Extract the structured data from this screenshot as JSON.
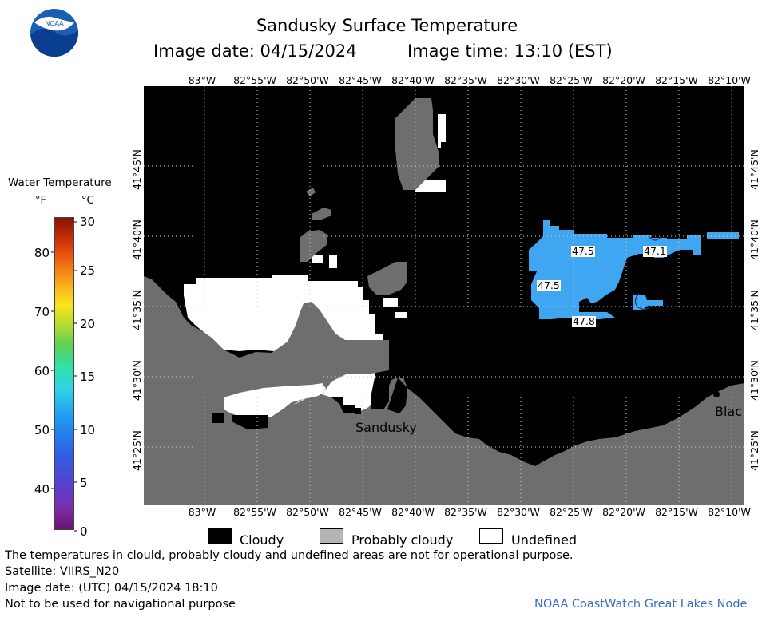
{
  "header": {
    "title": "Sandusky Surface Temperature",
    "image_date": "Image date: 04/15/2024",
    "image_time": "Image time: 13:10 (EST)",
    "logo_text": "NOAA"
  },
  "colorbar": {
    "title": "Water Temperature",
    "unit_f": "°F",
    "unit_c": "°C",
    "fahrenheit_ticks": [
      "80",
      "70",
      "60",
      "50",
      "40"
    ],
    "celsius_ticks": [
      "30",
      "25",
      "20",
      "15",
      "10",
      "5",
      "0"
    ]
  },
  "map": {
    "longitude_labels": [
      "83°W",
      "82°55'W",
      "82°50'W",
      "82°45'W",
      "82°40'W",
      "82°35'W",
      "82°30'W",
      "82°25'W",
      "82°20'W",
      "82°15'W",
      "82°10'W"
    ],
    "latitude_labels": [
      "41°45'N",
      "41°40'N",
      "41°35'N",
      "41°30'N",
      "41°25'N"
    ],
    "temperature_labels": [
      "47.5",
      "47.1",
      "47.5",
      "47.8"
    ],
    "place_labels": {
      "sandusky": "Sandusky",
      "blac": "Blac"
    },
    "colors": {
      "land": "#6e6e6e",
      "cloudy": "#000000",
      "undefined": "#ffffff",
      "water_47f": "#3fa7f2"
    }
  },
  "legend": {
    "cloudy": "Cloudy",
    "probably_cloudy": "Probably cloudy",
    "undefined": "Undefined"
  },
  "footer": {
    "disclaimer": "The temperatures in clould, probably cloudy and undefined areas are not for operational purpose.",
    "satellite": "Satellite: VIIRS_N20",
    "utc_date": "Image date: (UTC) 04/15/2024  18:10",
    "navigation_note": "Not to be used for navigational purpose",
    "credit": "NOAA CoastWatch Great Lakes Node"
  }
}
